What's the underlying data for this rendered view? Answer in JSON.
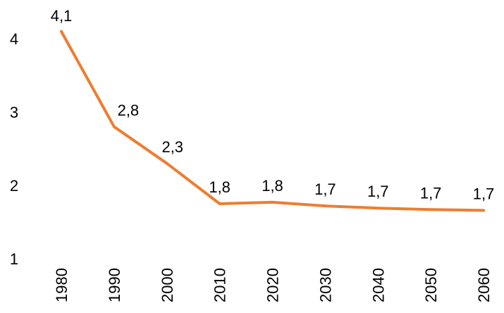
{
  "chart_data": {
    "type": "line",
    "title": "",
    "xlabel": "",
    "ylabel": "",
    "categories": [
      "1980",
      "1990",
      "2000",
      "2010",
      "2020",
      "2030",
      "2040",
      "2050",
      "2060"
    ],
    "series": [
      {
        "values": [
          4.1,
          2.8,
          2.3,
          1.75,
          1.77,
          1.72,
          1.69,
          1.67,
          1.66
        ],
        "data_labels": [
          "4,1",
          "2,8",
          "2,3",
          "1,8",
          "1,8",
          "1,7",
          "1,7",
          "1,7",
          "1,7"
        ],
        "color": "#ED7D31"
      }
    ],
    "y_ticks": [
      1,
      2,
      3,
      4
    ],
    "y_tick_labels": [
      "1",
      "2",
      "3",
      "4"
    ],
    "ylim": [
      1,
      4.4
    ],
    "grid": false,
    "legend": "none"
  }
}
